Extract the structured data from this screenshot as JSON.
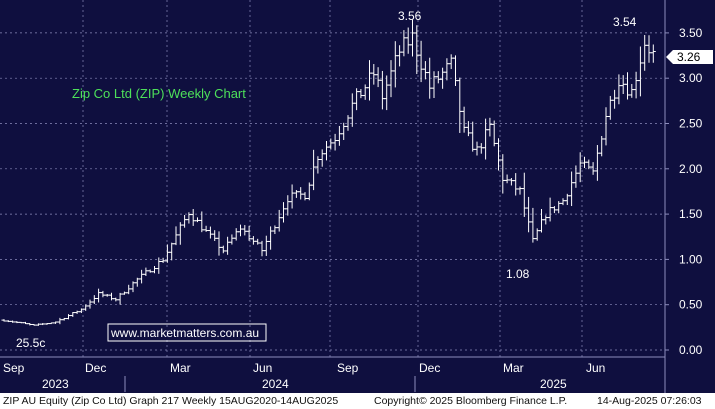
{
  "chart_data": {
    "type": "ohlc",
    "title": "Zip Co Ltd (ZIP) Weekly Chart",
    "watermark": "www.marketmatters.com.au",
    "current_price": "3.26",
    "ylim": [
      -0.05,
      3.6
    ],
    "yticks": [
      "0.00",
      "0.50",
      "1.00",
      "1.50",
      "2.00",
      "2.50",
      "3.00",
      "3.50"
    ],
    "month_labels": [
      "Sep",
      "Dec",
      "Mar",
      "Jun",
      "Sep",
      "Dec",
      "Mar",
      "Jun"
    ],
    "year_labels": [
      "2023",
      "2024",
      "2025"
    ],
    "annotations": [
      {
        "text": "3.56",
        "week": 75
      },
      {
        "text": "3.54",
        "week": 148
      },
      {
        "text": "1.08",
        "week": 123
      },
      {
        "text": "25.5c",
        "week": 7
      }
    ],
    "weekly_close_path": [
      {
        "week": 0,
        "price": 0.33
      },
      {
        "week": 7,
        "price": 0.27
      },
      {
        "week": 12,
        "price": 0.31
      },
      {
        "week": 18,
        "price": 0.45
      },
      {
        "week": 22,
        "price": 0.62
      },
      {
        "week": 26,
        "price": 0.56
      },
      {
        "week": 31,
        "price": 0.78
      },
      {
        "week": 37,
        "price": 1.0
      },
      {
        "week": 43,
        "price": 1.52
      },
      {
        "week": 48,
        "price": 1.25
      },
      {
        "week": 51,
        "price": 1.1
      },
      {
        "week": 55,
        "price": 1.35
      },
      {
        "week": 60,
        "price": 1.1
      },
      {
        "week": 66,
        "price": 1.68
      },
      {
        "week": 70,
        "price": 1.72
      },
      {
        "week": 73,
        "price": 2.15
      },
      {
        "week": 77,
        "price": 2.35
      },
      {
        "week": 81,
        "price": 2.7
      },
      {
        "week": 86,
        "price": 3.05
      },
      {
        "week": 88,
        "price": 2.8
      },
      {
        "week": 92,
        "price": 3.3
      },
      {
        "week": 95,
        "price": 3.45
      },
      {
        "week": 99,
        "price": 2.9
      },
      {
        "week": 104,
        "price": 3.15
      },
      {
        "week": 107,
        "price": 2.4
      },
      {
        "week": 110,
        "price": 2.2
      },
      {
        "week": 113,
        "price": 2.45
      },
      {
        "week": 116,
        "price": 1.9
      },
      {
        "week": 120,
        "price": 1.75
      },
      {
        "week": 123,
        "price": 1.2
      },
      {
        "week": 126,
        "price": 1.5
      },
      {
        "week": 130,
        "price": 1.65
      },
      {
        "week": 134,
        "price": 2.05
      },
      {
        "week": 137,
        "price": 1.95
      },
      {
        "week": 140,
        "price": 2.6
      },
      {
        "week": 143,
        "price": 3.0
      },
      {
        "week": 146,
        "price": 2.85
      },
      {
        "week": 149,
        "price": 3.4
      },
      {
        "week": 151,
        "price": 3.26
      }
    ],
    "footer": {
      "left": "ZIP AU Equity (Zip Co Ltd) Graph 217  Weekly 15AUG2020-14AUG2025",
      "middle": "Copyright© 2025 Bloomberg Finance L.P.",
      "right": "14-Aug-2025 07:26:03"
    }
  },
  "colors": {
    "background": "#0f0f3f",
    "grid": "#8c8cbc",
    "bars": "#ffffff",
    "title": "#4de05a",
    "price_tag": "#ffffff"
  }
}
